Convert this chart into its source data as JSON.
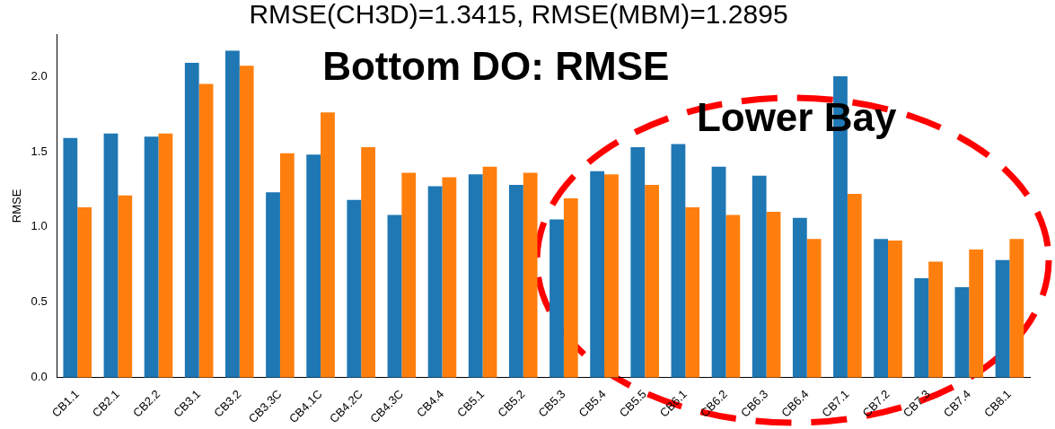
{
  "chart_data": {
    "type": "bar",
    "title": "RMSE(CH3D)=1.3415, RMSE(MBM)=1.2895",
    "ylabel": "RMSE",
    "annotations": [
      "Bottom DO: RMSE",
      "Lower Bay"
    ],
    "categories": [
      "CB1.1",
      "CB2.1",
      "CB2.2",
      "CB3.1",
      "CB3.2",
      "CB3.3C",
      "CB4.1C",
      "CB4.2C",
      "CB4.3C",
      "CB4.4",
      "CB5.1",
      "CB5.2",
      "CB5.3",
      "CB5.4",
      "CB5.5",
      "CB6.1",
      "CB6.2",
      "CB6.3",
      "CB6.4",
      "CB7.1",
      "CB7.2",
      "CB7.3",
      "CB7.4",
      "CB8.1"
    ],
    "series": [
      {
        "color": "#1f77b4",
        "values": [
          1.59,
          1.62,
          1.6,
          2.09,
          2.17,
          1.23,
          1.48,
          1.18,
          1.08,
          1.27,
          1.35,
          1.28,
          1.05,
          1.37,
          1.53,
          1.55,
          1.4,
          1.34,
          1.06,
          2.0,
          0.92,
          0.66,
          0.6,
          0.78
        ]
      },
      {
        "color": "#ff7f0e",
        "values": [
          1.13,
          1.21,
          1.62,
          1.95,
          2.07,
          1.49,
          1.76,
          1.53,
          1.36,
          1.33,
          1.4,
          1.36,
          1.19,
          1.35,
          1.28,
          1.13,
          1.08,
          1.1,
          0.92,
          1.22,
          0.91,
          0.77,
          0.85,
          0.92
        ]
      }
    ],
    "ylim": [
      0,
      2.28
    ],
    "yticks": [
      {
        "value": 0,
        "label": "0.0"
      },
      {
        "value": 0.5,
        "label": "0.5"
      },
      {
        "value": 1,
        "label": "1.0"
      },
      {
        "value": 1.5,
        "label": "1.5"
      },
      {
        "value": 2,
        "label": "2.0"
      }
    ],
    "grid": false,
    "legend": false
  }
}
